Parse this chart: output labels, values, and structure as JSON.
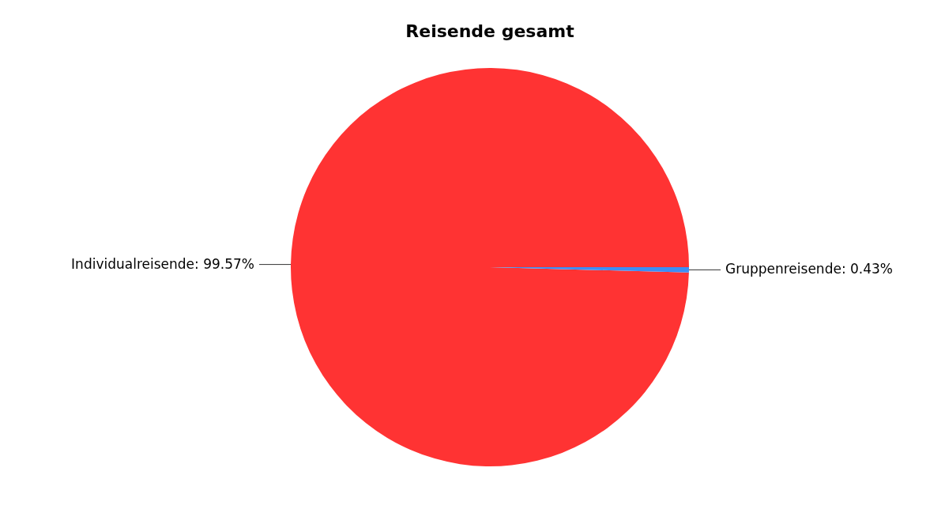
{
  "chart_data": {
    "type": "pie",
    "title": "Reisende gesamt",
    "categories": [
      "Individualreisende",
      "Gruppenreisende"
    ],
    "values": [
      99.57,
      0.43
    ],
    "value_labels": [
      "99.57%",
      "0.43%"
    ],
    "colors": [
      "#ff3333",
      "#3d8ef5"
    ]
  }
}
